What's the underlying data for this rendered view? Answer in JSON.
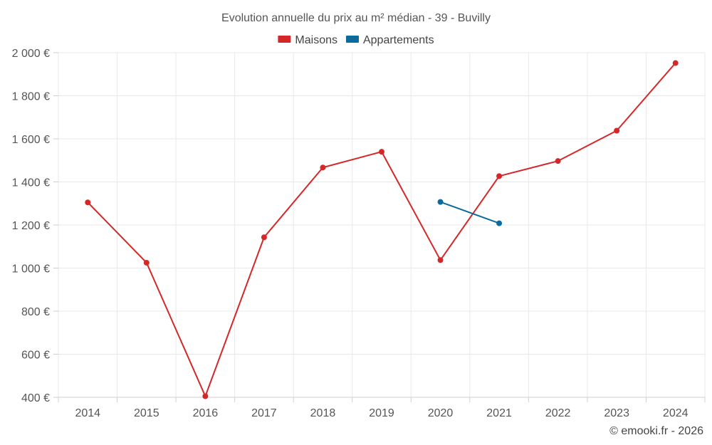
{
  "chart_data": {
    "type": "line",
    "title": "Evolution annuelle du prix au m² médian - 39 - Buvilly",
    "categories": [
      "2014",
      "2015",
      "2016",
      "2017",
      "2018",
      "2019",
      "2020",
      "2021",
      "2022",
      "2023",
      "2024"
    ],
    "series": [
      {
        "name": "Maisons",
        "color": "#d62728",
        "values": [
          1305,
          1025,
          405,
          1143,
          1467,
          1540,
          1037,
          1427,
          1497,
          1638,
          1952
        ]
      },
      {
        "name": "Appartements",
        "color": "#0d6a9c",
        "values": [
          null,
          null,
          null,
          null,
          null,
          null,
          1307,
          1208,
          null,
          null,
          null
        ]
      }
    ],
    "ylim": [
      400,
      2000
    ],
    "yticks": [
      400,
      600,
      800,
      1000,
      1200,
      1400,
      1600,
      1800,
      2000
    ],
    "ytick_labels": [
      "400 €",
      "600 €",
      "800 €",
      "1 000 €",
      "1 200 €",
      "1 400 €",
      "1 600 €",
      "1 800 €",
      "2 000 €"
    ],
    "xlabel": "",
    "ylabel": "",
    "grid": true,
    "legend_position": "top-center"
  },
  "credit": "© emooki.fr - 2026"
}
